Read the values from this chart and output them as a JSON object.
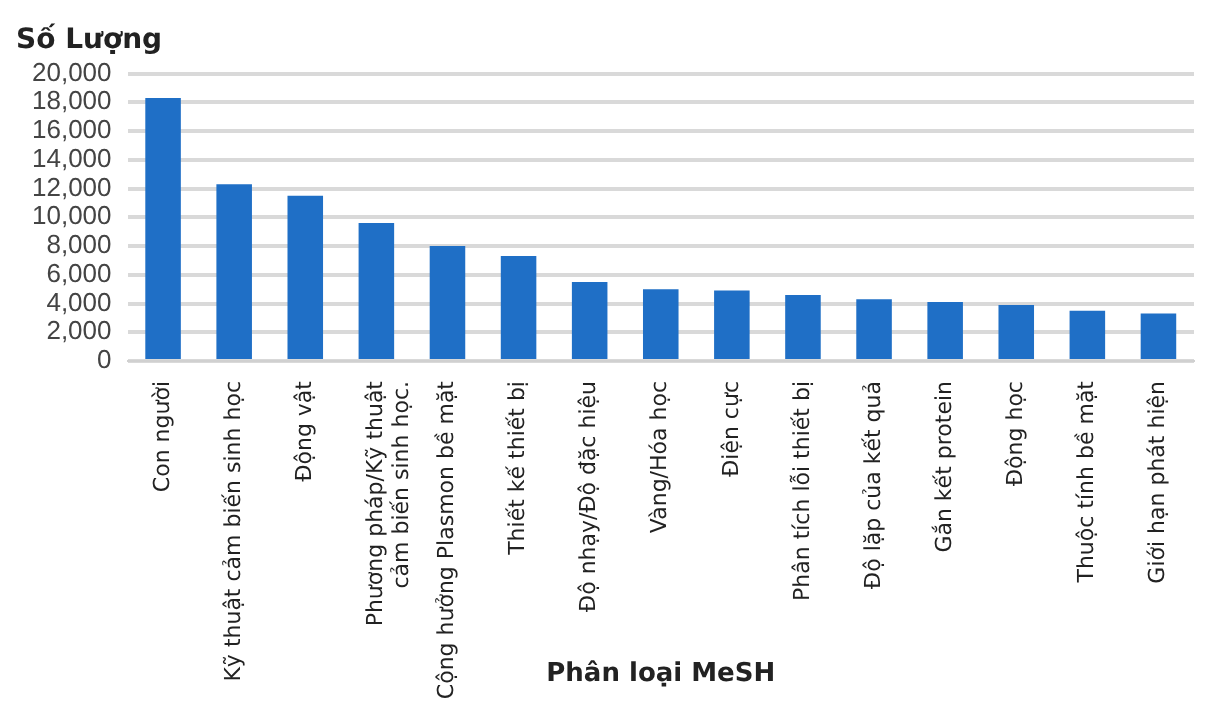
{
  "chart_data": {
    "type": "bar",
    "title": "Số Lượng",
    "xlabel": "Phân loại MeSH",
    "categories": [
      "Con người",
      "Kỹ thuật cảm biến sinh học",
      "Động vật",
      "Phương pháp/Kỹ thuật\ncảm biến sinh học.",
      "Cộng hưởng Plasmon bề mặt",
      "Thiết kế thiết bị",
      "Độ nhạy/Độ đặc hiệu",
      "Vàng/Hóa học",
      "Điện cực",
      "Phân tích lỗi thiết bị",
      "Độ lặp của kết quả",
      "Gắn kết protein",
      "Động học",
      "Thuộc tính bề mặt",
      "Giới hạn phát hiện"
    ],
    "values": [
      18300,
      12300,
      11500,
      9600,
      8000,
      7300,
      5500,
      5000,
      4900,
      4600,
      4300,
      4100,
      3900,
      3500,
      3300
    ],
    "color": "#1f6fc6",
    "ylim": [
      0,
      20000
    ],
    "yticks": [
      0,
      {
        "value": 2000,
        "label": "2,000"
      },
      {
        "value": 4000,
        "label": "4,000"
      },
      {
        "value": 6000,
        "label": "6,000"
      },
      {
        "value": 8000,
        "label": "8,000"
      },
      {
        "value": 10000,
        "label": "10,000"
      },
      {
        "value": 12000,
        "label": "12,000"
      },
      {
        "value": 14000,
        "label": "14,000"
      },
      {
        "value": 16000,
        "label": "16,000"
      },
      {
        "value": 18000,
        "label": "18,000"
      },
      {
        "value": 20000,
        "label": "20,000"
      }
    ],
    "grid": "y"
  }
}
